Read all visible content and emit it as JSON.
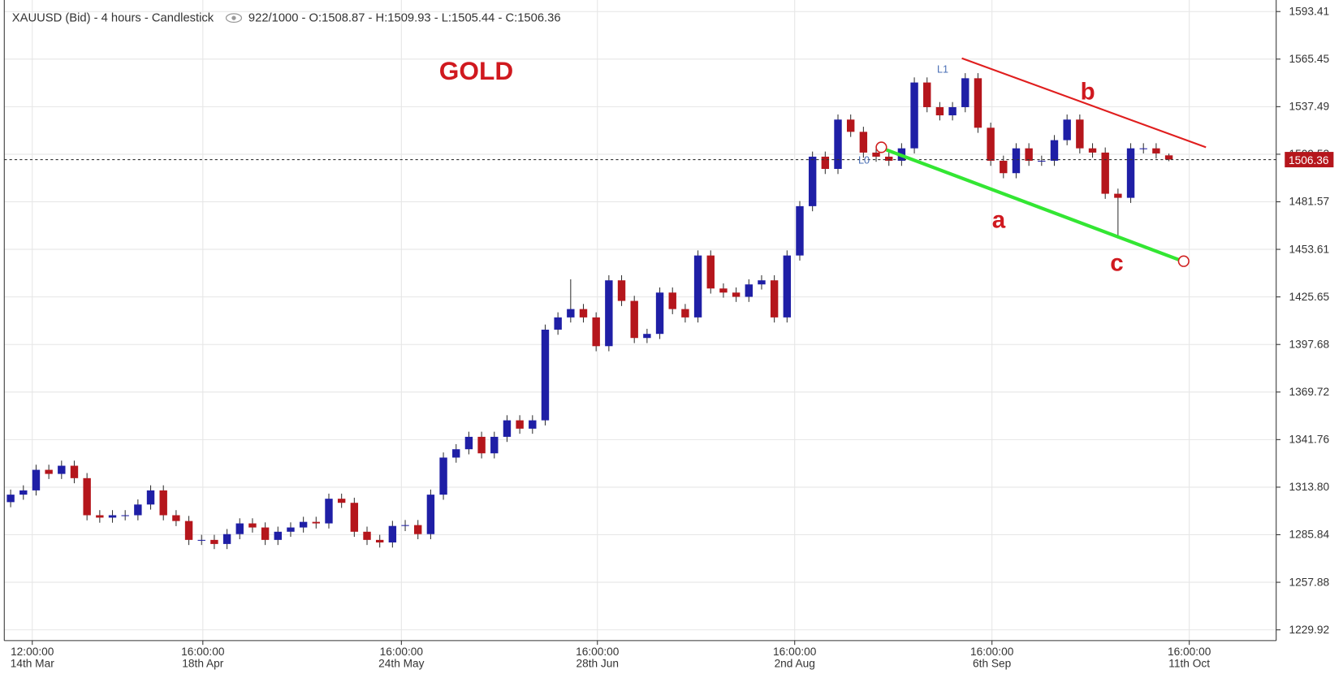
{
  "chart_data": {
    "type": "candlestick",
    "title": "XAUUSD (Bid) - 4 hours - Candlestick",
    "header_info": "922/1000 - O:1508.87 - H:1509.93 - L:1505.44 - C:1506.36",
    "annotations": {
      "name": "GOLD",
      "a": "a",
      "b": "b",
      "c": "c",
      "l0": "L0",
      "l1": "L1"
    },
    "up_color": "#1f1fa6",
    "down_color": "#b5161c",
    "last_price": 1506.36,
    "xlim": [
      -3.36,
      999.3
    ],
    "ylim": [
      1223.6,
      1600.2
    ],
    "grid": true,
    "xticks": [
      {
        "value": 22,
        "label": "12:00:00",
        "date": "14th Mar"
      },
      {
        "value": 156,
        "label": "16:00:00",
        "date": "18th Apr"
      },
      {
        "value": 312,
        "label": "16:00:00",
        "date": "24th May"
      },
      {
        "value": 466,
        "label": "16:00:00",
        "date": "28th Jun"
      },
      {
        "value": 621,
        "label": "16:00:00",
        "date": "2nd Aug"
      },
      {
        "value": 776,
        "label": "16:00:00",
        "date": "6th Sep"
      },
      {
        "value": 931,
        "label": "16:00:00",
        "date": "11th Oct"
      }
    ],
    "yticks": [
      1593.41,
      1565.45,
      1537.49,
      1509.53,
      1481.57,
      1453.61,
      1425.65,
      1397.68,
      1369.72,
      1341.76,
      {
        "value": 1313.8,
        "label": "1313.80"
      },
      1285.84,
      1257.88,
      1229.92
    ],
    "x": [
      5,
      15,
      25,
      35,
      45,
      55,
      65,
      75,
      85,
      95,
      105,
      115,
      125,
      135,
      145,
      155,
      165,
      175,
      185,
      195,
      205,
      215,
      225,
      235,
      245,
      255,
      265,
      275,
      285,
      295,
      305,
      315,
      325,
      335,
      345,
      355,
      365,
      375,
      385,
      395,
      405,
      415,
      425,
      435,
      445,
      455,
      465,
      475,
      485,
      495,
      505,
      515,
      525,
      535,
      545,
      555,
      565,
      575,
      585,
      595,
      605,
      615,
      625,
      635,
      645,
      655,
      665,
      675,
      685,
      695,
      705,
      715,
      725,
      735,
      745,
      755,
      765,
      775,
      785,
      795,
      805,
      815,
      825,
      835,
      845,
      855,
      865,
      875,
      885,
      895,
      905,
      915
    ],
    "ohlc": [
      [
        1305.0,
        1312.4,
        1302.0,
        1309.4
      ],
      [
        1309.4,
        1314.9,
        1306.4,
        1311.9
      ],
      [
        1311.9,
        1327.0,
        1308.9,
        1324.0
      ],
      [
        1324.0,
        1327.0,
        1318.6,
        1321.6
      ],
      [
        1321.6,
        1329.4,
        1318.6,
        1326.4
      ],
      [
        1326.4,
        1329.4,
        1316.1,
        1319.1
      ],
      [
        1319.1,
        1322.1,
        1294.3,
        1297.3
      ],
      [
        1297.3,
        1300.3,
        1292.9,
        1295.9
      ],
      [
        1295.9,
        1300.3,
        1292.9,
        1297.3
      ],
      [
        1297.3,
        1300.3,
        1294.3,
        1297.3
      ],
      [
        1297.3,
        1306.6,
        1294.3,
        1303.6
      ],
      [
        1303.6,
        1314.9,
        1300.6,
        1311.9
      ],
      [
        1311.9,
        1314.9,
        1294.3,
        1297.3
      ],
      [
        1297.3,
        1300.3,
        1290.9,
        1293.9
      ],
      [
        1293.9,
        1296.9,
        1279.8,
        1282.8
      ],
      [
        1282.8,
        1285.8,
        1279.8,
        1282.8
      ],
      [
        1282.8,
        1285.8,
        1277.4,
        1280.4
      ],
      [
        1280.4,
        1289.2,
        1277.4,
        1286.2
      ],
      [
        1286.2,
        1295.5,
        1283.2,
        1292.5
      ],
      [
        1292.5,
        1295.5,
        1287.1,
        1290.1
      ],
      [
        1290.1,
        1293.1,
        1279.8,
        1282.8
      ],
      [
        1282.8,
        1290.6,
        1279.8,
        1287.6
      ],
      [
        1287.6,
        1293.1,
        1284.6,
        1290.1
      ],
      [
        1290.1,
        1296.4,
        1287.1,
        1293.4
      ],
      [
        1293.4,
        1296.4,
        1289.5,
        1292.5
      ],
      [
        1292.5,
        1310.0,
        1289.5,
        1307.0
      ],
      [
        1307.0,
        1310.0,
        1301.6,
        1304.6
      ],
      [
        1304.6,
        1307.6,
        1284.6,
        1287.6
      ],
      [
        1287.6,
        1290.6,
        1279.8,
        1282.8
      ],
      [
        1282.8,
        1285.8,
        1278.3,
        1281.3
      ],
      [
        1281.3,
        1294.0,
        1278.3,
        1291.0
      ],
      [
        1291.0,
        1294.5,
        1288.0,
        1291.5
      ],
      [
        1291.5,
        1294.5,
        1283.2,
        1286.2
      ],
      [
        1286.2,
        1312.4,
        1283.2,
        1309.4
      ],
      [
        1309.4,
        1334.2,
        1306.4,
        1331.2
      ],
      [
        1331.2,
        1339.1,
        1328.2,
        1336.1
      ],
      [
        1336.1,
        1346.4,
        1333.1,
        1343.4
      ],
      [
        1343.4,
        1346.4,
        1330.7,
        1333.7
      ],
      [
        1333.7,
        1346.4,
        1330.7,
        1343.4
      ],
      [
        1343.4,
        1356.1,
        1340.4,
        1353.1
      ],
      [
        1353.1,
        1356.1,
        1345.2,
        1348.2
      ],
      [
        1348.2,
        1356.1,
        1345.2,
        1353.1
      ],
      [
        1353.1,
        1409.4,
        1350.1,
        1406.4
      ],
      [
        1406.4,
        1416.6,
        1403.4,
        1413.6
      ],
      [
        1413.6,
        1436.0,
        1410.6,
        1418.5
      ],
      [
        1418.5,
        1421.5,
        1410.6,
        1413.6
      ],
      [
        1413.6,
        1416.6,
        1393.7,
        1396.7
      ],
      [
        1396.7,
        1438.4,
        1393.7,
        1435.4
      ],
      [
        1435.4,
        1438.4,
        1420.3,
        1423.3
      ],
      [
        1423.3,
        1426.3,
        1398.5,
        1401.5
      ],
      [
        1401.5,
        1406.9,
        1398.5,
        1403.9
      ],
      [
        1403.9,
        1431.2,
        1400.9,
        1428.2
      ],
      [
        1428.2,
        1431.2,
        1415.5,
        1418.5
      ],
      [
        1418.5,
        1421.5,
        1410.6,
        1413.6
      ],
      [
        1413.6,
        1453.0,
        1410.6,
        1450.0
      ],
      [
        1450.0,
        1453.0,
        1427.6,
        1430.6
      ],
      [
        1430.6,
        1433.6,
        1425.2,
        1428.2
      ],
      [
        1428.2,
        1431.2,
        1422.7,
        1425.7
      ],
      [
        1425.7,
        1436.0,
        1422.7,
        1433.0
      ],
      [
        1433.0,
        1438.4,
        1430.0,
        1435.4
      ],
      [
        1435.4,
        1438.4,
        1410.6,
        1413.6
      ],
      [
        1413.6,
        1453.0,
        1410.6,
        1450.0
      ],
      [
        1450.0,
        1482.0,
        1447.0,
        1479.0
      ],
      [
        1479.0,
        1511.1,
        1476.0,
        1508.1
      ],
      [
        1508.1,
        1511.1,
        1497.9,
        1500.9
      ],
      [
        1500.9,
        1532.9,
        1497.9,
        1529.9
      ],
      [
        1529.9,
        1532.9,
        1519.7,
        1522.7
      ],
      [
        1522.7,
        1525.7,
        1507.5,
        1510.5
      ],
      [
        1510.5,
        1513.5,
        1505.1,
        1508.1
      ],
      [
        1508.1,
        1511.1,
        1502.7,
        1505.7
      ],
      [
        1505.7,
        1516.0,
        1502.7,
        1513.0
      ],
      [
        1513.0,
        1554.7,
        1510.0,
        1551.7
      ],
      [
        1551.7,
        1554.7,
        1534.2,
        1537.2
      ],
      [
        1537.2,
        1540.2,
        1529.4,
        1532.4
      ],
      [
        1532.4,
        1540.2,
        1529.4,
        1537.2
      ],
      [
        1537.2,
        1557.2,
        1534.2,
        1554.2
      ],
      [
        1554.2,
        1557.2,
        1522.1,
        1525.1
      ],
      [
        1525.1,
        1528.1,
        1502.7,
        1505.7
      ],
      [
        1505.7,
        1508.7,
        1495.4,
        1498.4
      ],
      [
        1498.4,
        1516.0,
        1495.4,
        1513.0
      ],
      [
        1513.0,
        1516.0,
        1502.7,
        1505.7
      ],
      [
        1505.7,
        1508.7,
        1502.7,
        1505.7
      ],
      [
        1505.7,
        1520.8,
        1502.7,
        1517.8
      ],
      [
        1517.8,
        1532.9,
        1514.8,
        1529.9
      ],
      [
        1529.9,
        1532.9,
        1510.0,
        1513.0
      ],
      [
        1513.0,
        1516.0,
        1507.5,
        1510.5
      ],
      [
        1510.5,
        1513.5,
        1483.3,
        1486.3
      ],
      [
        1486.3,
        1489.3,
        1460.0,
        1483.9
      ],
      [
        1483.9,
        1516.0,
        1480.9,
        1513.0
      ],
      [
        1513.0,
        1516.0,
        1510.0,
        1513.0
      ],
      [
        1513.0,
        1516.0,
        1507.0,
        1510.0
      ],
      [
        1508.87,
        1509.93,
        1505.44,
        1506.36
      ]
    ]
  }
}
